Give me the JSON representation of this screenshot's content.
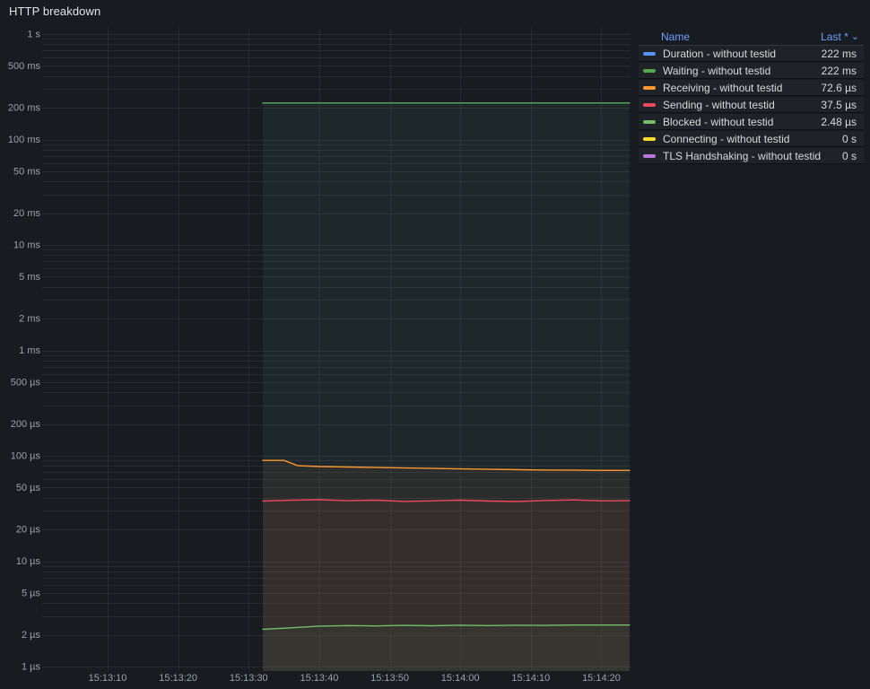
{
  "panel": {
    "title": "HTTP breakdown"
  },
  "legend": {
    "name_header": "Name",
    "value_header": "Last *",
    "sort_icon": "⌄"
  },
  "colors": {
    "background": "#181B1F",
    "grid": "rgba(201,219,238,0.08)",
    "axis_text": "#9DA1A9",
    "link_text": "#6E9FFF"
  },
  "chart_data": {
    "type": "line",
    "title": "HTTP breakdown",
    "y_scale": "log10",
    "legend_position": "right-table",
    "grid": "on",
    "x_ticks": [
      "15:13:10",
      "15:13:20",
      "15:13:30",
      "15:13:40",
      "15:13:50",
      "15:14:00",
      "15:14:10",
      "15:14:20"
    ],
    "y_ticks": [
      {
        "label": "1 s",
        "value_us": 1000000
      },
      {
        "label": "500 ms",
        "value_us": 500000
      },
      {
        "label": "200 ms",
        "value_us": 200000
      },
      {
        "label": "100 ms",
        "value_us": 100000
      },
      {
        "label": "50 ms",
        "value_us": 50000
      },
      {
        "label": "20 ms",
        "value_us": 20000
      },
      {
        "label": "10 ms",
        "value_us": 10000
      },
      {
        "label": "5 ms",
        "value_us": 5000
      },
      {
        "label": "2 ms",
        "value_us": 2000
      },
      {
        "label": "1 ms",
        "value_us": 1000
      },
      {
        "label": "500 µs",
        "value_us": 500
      },
      {
        "label": "200 µs",
        "value_us": 200
      },
      {
        "label": "100 µs",
        "value_us": 100
      },
      {
        "label": "50 µs",
        "value_us": 50
      },
      {
        "label": "20 µs",
        "value_us": 20
      },
      {
        "label": "10 µs",
        "value_us": 10
      },
      {
        "label": "5 µs",
        "value_us": 5
      },
      {
        "label": "2 µs",
        "value_us": 2
      },
      {
        "label": "1 µs",
        "value_us": 1
      }
    ],
    "y_range_us": [
      1,
      1200000
    ],
    "series": [
      {
        "name": "Duration - without testid",
        "color": "#5794F2",
        "last": "222 ms",
        "times": [
          "15:13:32",
          "15:14:24"
        ],
        "values_us": [
          222000,
          222000
        ]
      },
      {
        "name": "Waiting - without testid",
        "color": "#56A64B",
        "last": "222 ms",
        "times": [
          "15:13:32",
          "15:14:24"
        ],
        "values_us": [
          222000,
          222000
        ]
      },
      {
        "name": "Receiving - without testid",
        "color": "#FF9830",
        "last": "72.6 µs",
        "times": [
          "15:13:32",
          "15:13:35",
          "15:13:37",
          "15:13:40",
          "15:13:44",
          "15:13:48",
          "15:13:52",
          "15:13:56",
          "15:14:00",
          "15:14:04",
          "15:14:08",
          "15:14:12",
          "15:14:16",
          "15:14:20",
          "15:14:24"
        ],
        "values_us": [
          90.3,
          90.3,
          80.5,
          79.0,
          78.2,
          77.4,
          76.6,
          75.8,
          75.1,
          74.4,
          73.8,
          73.3,
          72.9,
          72.7,
          72.6
        ]
      },
      {
        "name": "Sending - without testid",
        "color": "#F2495C",
        "last": "37.5 µs",
        "times": [
          "15:13:32",
          "15:13:36",
          "15:13:40",
          "15:13:44",
          "15:13:48",
          "15:13:52",
          "15:13:56",
          "15:14:00",
          "15:14:04",
          "15:14:08",
          "15:14:12",
          "15:14:16",
          "15:14:20",
          "15:14:24"
        ],
        "values_us": [
          37.2,
          37.8,
          38.3,
          37.5,
          37.9,
          36.9,
          37.3,
          37.9,
          37.2,
          36.8,
          37.6,
          38.1,
          37.3,
          37.5
        ]
      },
      {
        "name": "Blocked - without testid",
        "color": "#73BF69",
        "last": "2.48 µs",
        "times": [
          "15:13:32",
          "15:13:36",
          "15:13:40",
          "15:13:44",
          "15:13:48",
          "15:13:52",
          "15:13:56",
          "15:14:00",
          "15:14:04",
          "15:14:08",
          "15:14:12",
          "15:14:16",
          "15:14:20",
          "15:14:24"
        ],
        "values_us": [
          2.26,
          2.33,
          2.42,
          2.45,
          2.43,
          2.46,
          2.44,
          2.47,
          2.45,
          2.47,
          2.46,
          2.48,
          2.48,
          2.48
        ]
      },
      {
        "name": "Connecting - without testid",
        "color": "#FADE2A",
        "last": "0 s",
        "times": [
          "15:13:32",
          "15:14:24"
        ],
        "values_us": [
          0,
          0
        ]
      },
      {
        "name": "TLS Handshaking - without testid",
        "color": "#B877D9",
        "last": "0 s",
        "times": [
          "15:13:32",
          "15:14:24"
        ],
        "values_us": [
          0,
          0
        ]
      }
    ]
  }
}
